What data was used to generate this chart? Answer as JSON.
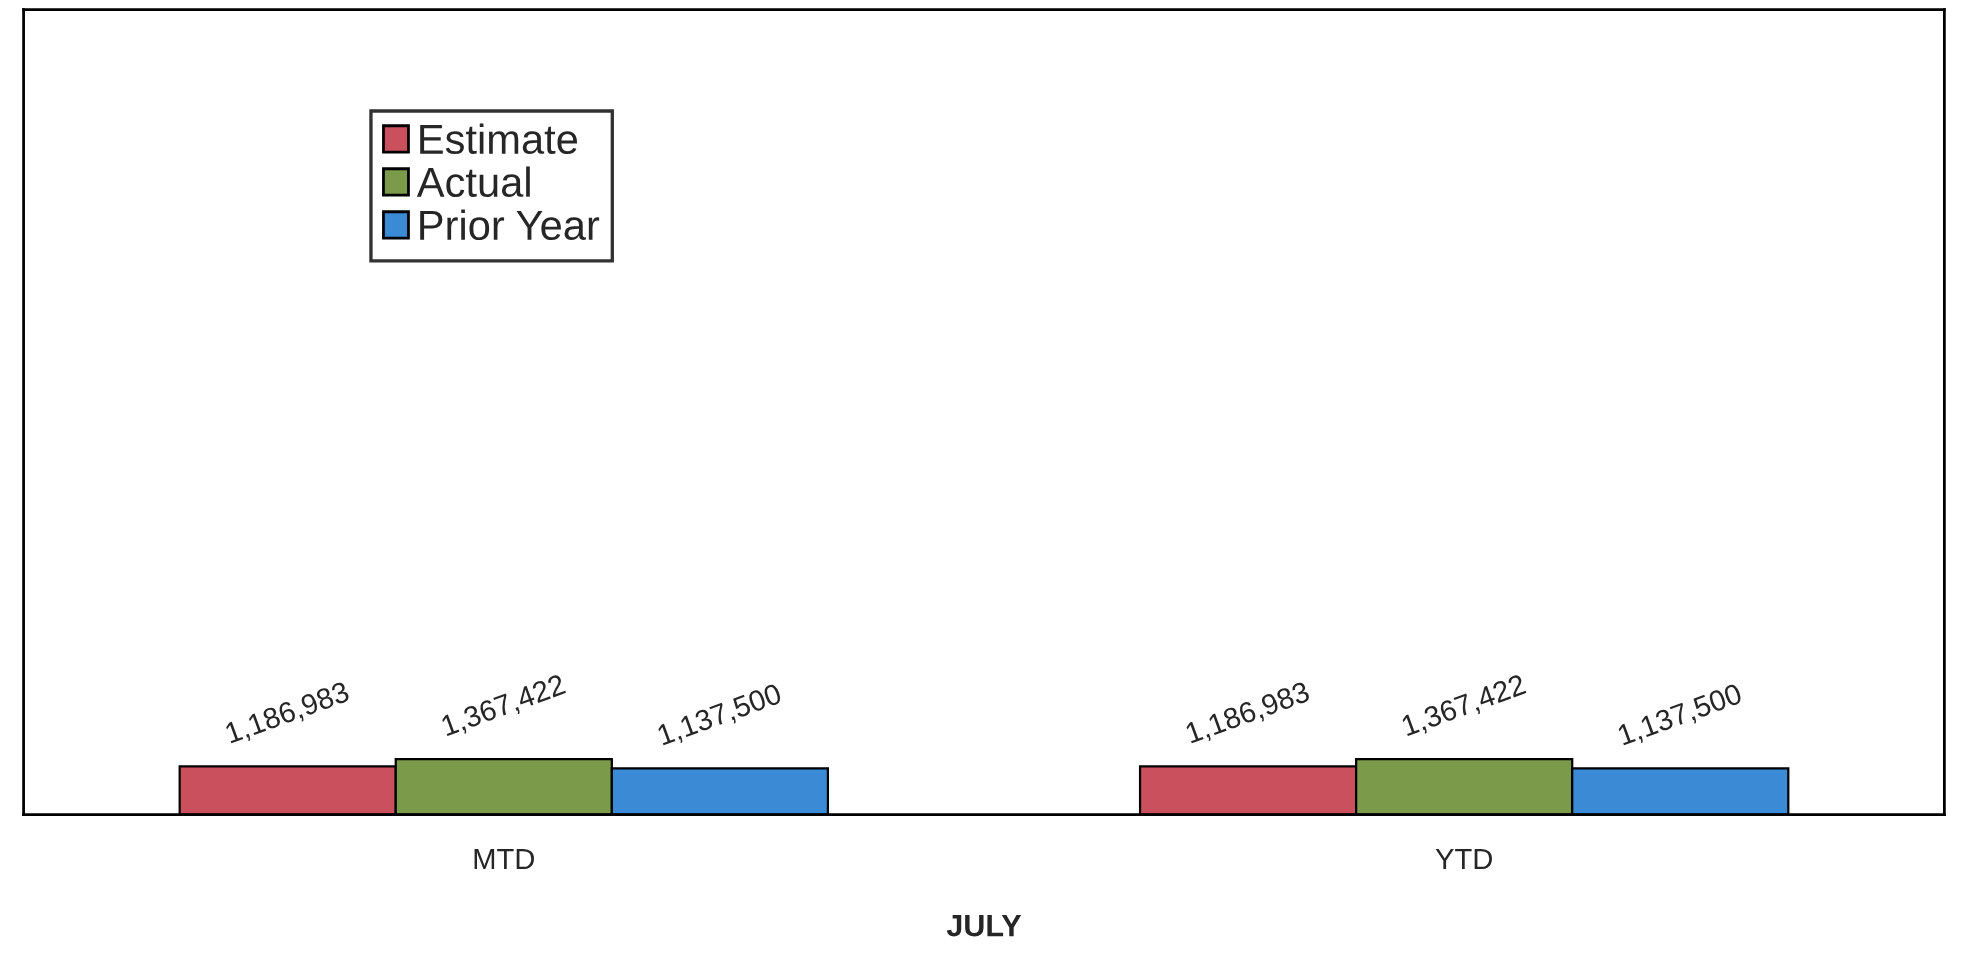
{
  "chart_data": {
    "type": "bar",
    "xlabel": "JULY",
    "categories": [
      "MTD",
      "YTD"
    ],
    "series": [
      {
        "name": "Estimate",
        "color": "#c9505c",
        "values": [
          1186983,
          1186983
        ],
        "value_labels": [
          "1,186,983",
          "1,186,983"
        ]
      },
      {
        "name": "Actual",
        "color": "#7b9a4a",
        "values": [
          1367422,
          1367422
        ],
        "value_labels": [
          "1,367,422",
          "1,367,422"
        ]
      },
      {
        "name": "Prior Year",
        "color": "#3b8ad6",
        "values": [
          1137500,
          1137500
        ],
        "value_labels": [
          "1,137,500",
          "1,137,500"
        ]
      }
    ],
    "legend": "top left",
    "grid": false
  }
}
